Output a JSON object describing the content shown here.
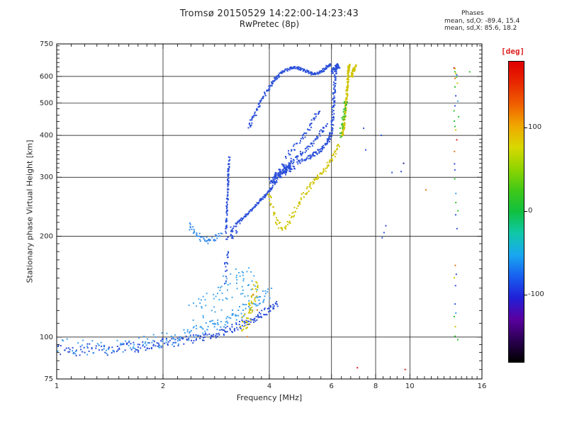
{
  "chart_data": {
    "type": "scatter",
    "title": "Tromsø 20150529 14:22:00-14:23:43",
    "subtitle": "RwPretec (8p)",
    "annotations": {
      "header": "Phases",
      "o_stats": "mean, sd,O: -89.4, 15.4",
      "x_stats": "mean, sd,X: 85.6, 18.2"
    },
    "xlabel": "Frequency [MHz]",
    "ylabel": "Stationary phase Virtual Height [km]",
    "xscale": "log",
    "yscale": "log",
    "xlim": [
      1,
      16
    ],
    "ylim": [
      75,
      750
    ],
    "xticks": [
      1,
      2,
      4,
      6,
      8,
      10,
      16
    ],
    "yticks": [
      75,
      100,
      200,
      300,
      400,
      500,
      600,
      750
    ],
    "xgridlines": [
      2,
      4,
      6,
      8,
      10
    ],
    "ygridlines": [
      100,
      200,
      300,
      400,
      500,
      600
    ],
    "grid": "on",
    "colorbar": {
      "title": "[deg]",
      "ticks": [
        100,
        0,
        -100
      ],
      "min": -180,
      "max": 180,
      "gradient": [
        "#000000",
        "#2a0050",
        "#5a00a0",
        "#2020d8",
        "#1860f0",
        "#18a8f0",
        "#10c8a8",
        "#10c040",
        "#40c818",
        "#90d400",
        "#d8d800",
        "#f0a800",
        "#f06000",
        "#e82800",
        "#e00000"
      ]
    },
    "series": [
      {
        "name": "e-region-trace",
        "color": "#2b50d9",
        "n": 240,
        "jitter": [
          0.01,
          3
        ],
        "points": [
          [
            1.0,
            92
          ],
          [
            1.12,
            90
          ],
          [
            1.25,
            93
          ],
          [
            1.4,
            91
          ],
          [
            1.55,
            94
          ],
          [
            1.7,
            93
          ],
          [
            1.85,
            95
          ],
          [
            2.0,
            96
          ],
          [
            2.2,
            97
          ],
          [
            2.4,
            99
          ],
          [
            2.6,
            100
          ],
          [
            2.8,
            102
          ],
          [
            3.0,
            104
          ],
          [
            3.2,
            107
          ],
          [
            3.4,
            110
          ],
          [
            3.6,
            113
          ],
          [
            3.8,
            117
          ],
          [
            4.0,
            121
          ],
          [
            4.2,
            126
          ]
        ]
      },
      {
        "name": "e-region-trace-light",
        "color": "#3fa0f0",
        "n": 170,
        "jitter": [
          0.018,
          5
        ],
        "points": [
          [
            1.0,
            95
          ],
          [
            1.3,
            93
          ],
          [
            1.6,
            95
          ],
          [
            1.9,
            97
          ],
          [
            2.2,
            100
          ],
          [
            2.5,
            104
          ],
          [
            2.8,
            108
          ],
          [
            3.1,
            113
          ],
          [
            3.4,
            120
          ],
          [
            3.7,
            128
          ],
          [
            4.0,
            135
          ]
        ]
      },
      {
        "name": "e-scatter",
        "color": "#46a8ee",
        "n": 70,
        "jitter": [
          0.045,
          13
        ],
        "points": [
          [
            2.35,
            118
          ],
          [
            2.6,
            126
          ],
          [
            2.85,
            134
          ],
          [
            3.05,
            142
          ],
          [
            3.25,
            150
          ],
          [
            3.45,
            143
          ],
          [
            3.6,
            152
          ]
        ]
      },
      {
        "name": "es-cluster-yellow",
        "color": "#cfc400",
        "n": 55,
        "jitter": [
          0.018,
          7
        ],
        "points": [
          [
            3.35,
            105
          ],
          [
            3.45,
            112
          ],
          [
            3.55,
            122
          ],
          [
            3.62,
            132
          ],
          [
            3.68,
            142
          ]
        ]
      },
      {
        "name": "es-dots-orange",
        "color": "#e07818",
        "jitter": [
          0.01,
          3
        ],
        "points": [
          [
            3.58,
            135
          ],
          [
            3.66,
            120
          ],
          [
            3.45,
            100
          ]
        ]
      },
      {
        "name": "f-hook",
        "color": "#3c8ee8",
        "n": 50,
        "jitter": [
          0.01,
          4
        ],
        "points": [
          [
            2.38,
            216
          ],
          [
            2.45,
            206
          ],
          [
            2.55,
            198
          ],
          [
            2.68,
            194
          ],
          [
            2.8,
            197
          ],
          [
            2.92,
            203
          ]
        ]
      },
      {
        "name": "f-spike",
        "color": "#2b50d9",
        "n": 80,
        "jitter": [
          0.005,
          5
        ],
        "points": [
          [
            3.02,
            205
          ],
          [
            3.03,
            235
          ],
          [
            3.05,
            270
          ],
          [
            3.06,
            305
          ],
          [
            3.08,
            342
          ]
        ]
      },
      {
        "name": "f-spike-tail",
        "color": "#2b50d9",
        "n": 16,
        "jitter": [
          0.008,
          6
        ],
        "points": [
          [
            3.0,
            150
          ],
          [
            3.02,
            165
          ],
          [
            3.05,
            180
          ]
        ]
      },
      {
        "name": "f-oblique",
        "color": "#2b50d9",
        "n": 95,
        "jitter": [
          0.004,
          2
        ],
        "points": [
          [
            3.22,
            218
          ],
          [
            3.45,
            232
          ],
          [
            3.7,
            250
          ],
          [
            3.9,
            265
          ],
          [
            4.08,
            280
          ]
        ]
      },
      {
        "name": "f-cusp-fill",
        "color": "#2b50d9",
        "n": 25,
        "jitter": [
          0.02,
          7
        ],
        "points": [
          [
            3.08,
            200
          ],
          [
            3.16,
            206
          ],
          [
            3.24,
            214
          ]
        ]
      },
      {
        "name": "f-o-cluster",
        "color": "#2b50d9",
        "n": 150,
        "jitter": [
          0.018,
          8
        ],
        "points": [
          [
            4.05,
            290
          ],
          [
            4.2,
            300
          ],
          [
            4.35,
            310
          ],
          [
            4.5,
            318
          ],
          [
            4.65,
            325
          ]
        ]
      },
      {
        "name": "f-o-rise",
        "color": "#2b50d9",
        "n": 160,
        "jitter": [
          0.008,
          5
        ],
        "points": [
          [
            4.8,
            330
          ],
          [
            5.1,
            340
          ],
          [
            5.35,
            350
          ],
          [
            5.6,
            362
          ],
          [
            5.8,
            378
          ],
          [
            5.95,
            395
          ],
          [
            6.02,
            420
          ],
          [
            6.06,
            460
          ],
          [
            6.09,
            510
          ],
          [
            6.12,
            560
          ],
          [
            6.15,
            610
          ],
          [
            6.17,
            648
          ]
        ]
      },
      {
        "name": "f-branch-upper",
        "color": "#2b50d9",
        "n": 70,
        "jitter": [
          0.012,
          5
        ],
        "points": [
          [
            4.35,
            322
          ],
          [
            4.6,
            334
          ],
          [
            4.85,
            348
          ],
          [
            5.1,
            364
          ],
          [
            5.35,
            384
          ],
          [
            5.6,
            407
          ],
          [
            5.8,
            430
          ]
        ]
      },
      {
        "name": "f-branch-steep",
        "color": "#2b50d9",
        "n": 45,
        "jitter": [
          0.014,
          6
        ],
        "points": [
          [
            4.45,
            345
          ],
          [
            4.7,
            366
          ],
          [
            4.95,
            392
          ],
          [
            5.15,
            418
          ],
          [
            5.35,
            448
          ],
          [
            5.5,
            472
          ]
        ]
      },
      {
        "name": "f2-arc",
        "color": "#2b50d9",
        "n": 210,
        "jitter": [
          0.009,
          5
        ],
        "points": [
          [
            3.5,
            425
          ],
          [
            3.62,
            455
          ],
          [
            3.74,
            490
          ],
          [
            3.87,
            525
          ],
          [
            4.0,
            558
          ],
          [
            4.15,
            590
          ],
          [
            4.3,
            614
          ],
          [
            4.5,
            630
          ],
          [
            4.7,
            639
          ],
          [
            4.9,
            632
          ],
          [
            5.1,
            620
          ],
          [
            5.3,
            610
          ],
          [
            5.5,
            613
          ],
          [
            5.7,
            626
          ],
          [
            5.85,
            641
          ],
          [
            5.95,
            650
          ]
        ]
      },
      {
        "name": "f-top-cluster",
        "color": "#2b50d9",
        "n": 40,
        "jitter": [
          0.012,
          10
        ],
        "points": [
          [
            6.05,
            615
          ],
          [
            6.12,
            632
          ],
          [
            6.2,
            645
          ],
          [
            6.28,
            636
          ]
        ]
      },
      {
        "name": "x-cusp",
        "color": "#cfc400",
        "n": 130,
        "jitter": [
          0.01,
          5
        ],
        "points": [
          [
            4.0,
            268
          ],
          [
            4.08,
            240
          ],
          [
            4.2,
            220
          ],
          [
            4.35,
            212
          ],
          [
            4.55,
            222
          ],
          [
            4.75,
            240
          ],
          [
            4.95,
            260
          ],
          [
            5.15,
            278
          ],
          [
            5.35,
            292
          ],
          [
            5.55,
            303
          ],
          [
            5.75,
            318
          ],
          [
            5.95,
            335
          ],
          [
            6.15,
            356
          ],
          [
            6.3,
            376
          ]
        ]
      },
      {
        "name": "x-asymptote",
        "color": "#cfc400",
        "n": 150,
        "jitter": [
          0.006,
          6
        ],
        "points": [
          [
            6.42,
            396
          ],
          [
            6.5,
            426
          ],
          [
            6.56,
            466
          ],
          [
            6.62,
            516
          ],
          [
            6.66,
            570
          ],
          [
            6.7,
            624
          ],
          [
            6.73,
            650
          ]
        ]
      },
      {
        "name": "x-top-dots",
        "color": "#cfc400",
        "n": 30,
        "jitter": [
          0.008,
          10
        ],
        "points": [
          [
            6.85,
            598
          ],
          [
            6.92,
            622
          ],
          [
            7.0,
            645
          ]
        ]
      },
      {
        "name": "x-green-mix",
        "color": "#2ec22e",
        "n": 28,
        "jitter": [
          0.01,
          9
        ],
        "points": [
          [
            6.34,
            402
          ],
          [
            6.44,
            434
          ],
          [
            6.52,
            470
          ],
          [
            6.58,
            508
          ]
        ]
      },
      {
        "name": "spread-f-green",
        "color": "#2ec22e",
        "jitter": [
          0.012,
          4
        ],
        "points": [
          [
            13.4,
            618
          ],
          [
            13.55,
            600
          ],
          [
            13.45,
            560
          ],
          [
            13.5,
            470
          ],
          [
            13.4,
            440
          ],
          [
            13.55,
            428
          ],
          [
            13.5,
            300
          ],
          [
            13.45,
            255
          ],
          [
            13.55,
            240
          ],
          [
            13.5,
            118
          ],
          [
            13.4,
            102
          ],
          [
            13.6,
            95
          ],
          [
            14.6,
            615
          ],
          [
            13.6,
            452
          ]
        ]
      },
      {
        "name": "spread-f-blue",
        "color": "#2b50d9",
        "jitter": [
          0.012,
          4
        ],
        "points": [
          [
            13.45,
            492
          ],
          [
            13.5,
            330
          ],
          [
            13.55,
            318
          ],
          [
            13.4,
            230
          ],
          [
            13.5,
            210
          ],
          [
            13.6,
            140
          ],
          [
            13.45,
            125
          ],
          [
            13.5,
            606
          ],
          [
            13.55,
            522
          ],
          [
            13.42,
            158
          ]
        ]
      },
      {
        "name": "spread-f-yellow",
        "color": "#cfc400",
        "jitter": [
          0.012,
          4
        ],
        "points": [
          [
            13.5,
            630
          ],
          [
            13.42,
            612
          ],
          [
            13.55,
            576
          ],
          [
            13.5,
            415
          ],
          [
            13.45,
            150
          ],
          [
            13.58,
            108
          ]
        ]
      },
      {
        "name": "spread-f-orange",
        "color": "#e07818",
        "jitter": [
          0.012,
          4
        ],
        "points": [
          [
            13.55,
            592
          ],
          [
            13.5,
            162
          ],
          [
            13.4,
            362
          ]
        ]
      },
      {
        "name": "spread-f-red",
        "color": "#d42020",
        "jitter": [
          0.012,
          4
        ],
        "points": [
          [
            13.5,
            640
          ],
          [
            13.45,
            385
          ]
        ]
      },
      {
        "name": "spread-f-cyan",
        "color": "#3fa0f0",
        "jitter": [
          0.012,
          4
        ],
        "points": [
          [
            13.55,
            505
          ],
          [
            13.5,
            272
          ],
          [
            13.42,
            115
          ]
        ]
      },
      {
        "name": "sporadic-blue",
        "color": "#2b50d9",
        "points": [
          [
            8.3,
            400
          ],
          [
            8.35,
            198
          ],
          [
            8.45,
            205
          ],
          [
            8.55,
            215
          ],
          [
            8.9,
            310
          ],
          [
            7.4,
            420
          ],
          [
            7.5,
            362
          ],
          [
            9.45,
            312
          ]
        ]
      },
      {
        "name": "sporadic-dark",
        "color": "#18207a",
        "points": [
          [
            9.6,
            330
          ]
        ]
      },
      {
        "name": "sporadic-orange",
        "color": "#e07818",
        "points": [
          [
            11.1,
            275
          ]
        ]
      },
      {
        "name": "sporadic-red",
        "color": "#d42020",
        "points": [
          [
            9.7,
            80
          ],
          [
            7.1,
            81
          ]
        ]
      }
    ]
  }
}
